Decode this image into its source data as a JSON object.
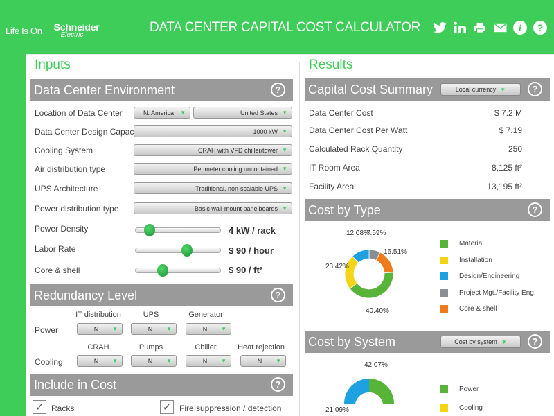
{
  "header": {
    "lifeison": "Life Is On",
    "brand_top": "Schneider",
    "brand_bottom": "Electric",
    "title": "DATA CENTER CAPITAL COST CALCULATOR"
  },
  "inputs": {
    "heading": "Inputs",
    "environment": {
      "title": "Data Center Environment",
      "location": {
        "label": "Location of Data Center",
        "region": "N. America",
        "country": "United States"
      },
      "capacity": {
        "label": "Data Center Design Capacity",
        "value": "1000 kW"
      },
      "cooling": {
        "label": "Cooling System",
        "value": "CRAH with VFD chiller/tower"
      },
      "air": {
        "label": "Air distribution type",
        "value": "Perimeter cooling uncontained"
      },
      "ups": {
        "label": "UPS Architecture",
        "value": "Traditional, non-scalable UPS"
      },
      "power": {
        "label": "Power distribution type",
        "value": "Basic wall-mount panelboards"
      },
      "sliders": [
        {
          "label": "Power Density",
          "value": "4 kW / rack",
          "level": 0.16
        },
        {
          "label": "Labor Rate",
          "value": "$ 90 / hour",
          "level": 0.61
        },
        {
          "label": "Core & shell",
          "value": "$ 90 / ft²",
          "level": 0.32
        }
      ]
    },
    "redundancy": {
      "title": "Redundancy Level",
      "power_label": "Power",
      "cooling_label": "Cooling",
      "power_cols": [
        {
          "head": "IT distribution",
          "value": "N"
        },
        {
          "head": "UPS",
          "value": "N"
        },
        {
          "head": "Generator",
          "value": "N"
        }
      ],
      "cooling_cols": [
        {
          "head": "CRAH",
          "value": "N"
        },
        {
          "head": "Pumps",
          "value": "N"
        },
        {
          "head": "Chiller",
          "value": "N"
        },
        {
          "head": "Heat rejection",
          "value": "N"
        }
      ]
    },
    "include": {
      "title": "Include in Cost",
      "items": [
        {
          "label": "Racks",
          "checked": true
        },
        {
          "label": "Fire suppression / detection",
          "checked": true
        }
      ]
    }
  },
  "results": {
    "heading": "Results",
    "summary": {
      "title": "Capital Cost Summary",
      "currency": "Local currency",
      "rows": [
        {
          "label": "Data Center Cost",
          "value": "$ 7.2 M"
        },
        {
          "label": "Data Center Cost Per Watt",
          "value": "$ 7.19"
        },
        {
          "label": "Calculated Rack Quantity",
          "value": "250"
        },
        {
          "label": "IT Room Area",
          "value": "8,125 ft²"
        },
        {
          "label": "Facility Area",
          "value": "13,195 ft²"
        }
      ]
    },
    "by_type": {
      "title": "Cost by Type",
      "labels": {
        "material": "40.40%",
        "installation": "23.42%",
        "design": "12.08%",
        "project": "7.59%",
        "core": "16.51%"
      },
      "legend": [
        {
          "name": "Material",
          "color": "#58b339"
        },
        {
          "name": "Installation",
          "color": "#f3d416"
        },
        {
          "name": "Design/Engineering",
          "color": "#1da1e0"
        },
        {
          "name": "Project Mgt./Facility Eng.",
          "color": "#8a8f96"
        },
        {
          "name": "Core & shell",
          "color": "#ef7b1d"
        }
      ]
    },
    "by_system": {
      "title": "Cost by System",
      "selector": "Cost by system",
      "label_top": "42.07%",
      "label_left": "21.09%",
      "legend": [
        {
          "name": "Power",
          "color": "#58b339"
        },
        {
          "name": "Cooling",
          "color": "#f3d416"
        }
      ]
    }
  },
  "chart_data": [
    {
      "type": "pie",
      "title": "Cost by Type",
      "categories": [
        "Material",
        "Installation",
        "Design/Engineering",
        "Project Mgt./Facility Eng.",
        "Core & shell"
      ],
      "values": [
        40.4,
        23.42,
        12.08,
        7.59,
        16.51
      ],
      "colors": [
        "#58b339",
        "#f3d416",
        "#1da1e0",
        "#8a8f96",
        "#ef7b1d"
      ]
    }
  ]
}
